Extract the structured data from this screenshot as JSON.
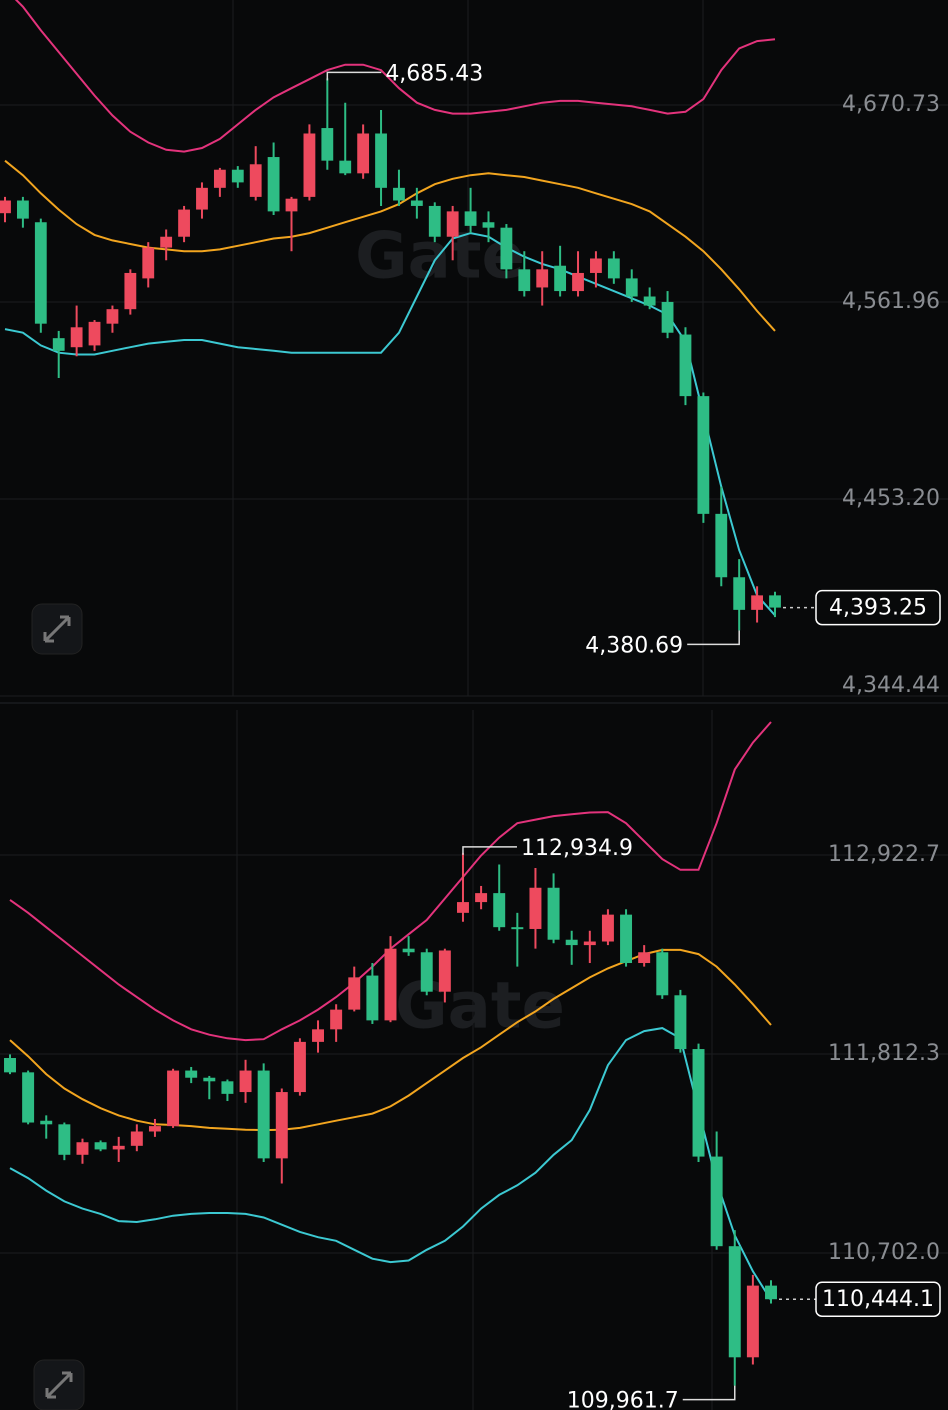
{
  "chart_data": [
    {
      "type": "candlestick",
      "up_color": "#ee4a5e",
      "down_color": "#2ebd85",
      "ylim": [
        4344.44,
        4728.7
      ],
      "yticks": [
        {
          "value": 4344.44,
          "label": "4,344.44"
        },
        {
          "value": 4453.2,
          "label": "4,453.20"
        },
        {
          "value": 4561.96,
          "label": "4,561.96"
        },
        {
          "value": 4670.73,
          "label": "4,670.73"
        }
      ],
      "grid": true,
      "watermark": "Gate",
      "high_label": "4,685.43",
      "low_label": "4,380.69",
      "last_label": "4,393.25",
      "open": [
        4611,
        4618,
        4606,
        4542,
        4537,
        4538,
        4550,
        4558,
        4575,
        4592,
        4598,
        4613,
        4625,
        4635,
        4620,
        4642,
        4612,
        4620,
        4658,
        4640,
        4633,
        4655,
        4625,
        4618,
        4615,
        4598,
        4612,
        4606,
        4603,
        4580,
        4570,
        4582,
        4568,
        4578,
        4586,
        4575,
        4565,
        4562,
        4544,
        4510,
        4445,
        4410,
        4392,
        4400
      ],
      "high": [
        4620,
        4620,
        4608,
        4546,
        4560,
        4552,
        4560,
        4580,
        4595,
        4602,
        4615,
        4628,
        4636,
        4637,
        4648,
        4650,
        4620,
        4660,
        4685.43,
        4672,
        4660,
        4668,
        4635,
        4625,
        4617,
        4615,
        4625,
        4612,
        4605,
        4590,
        4590,
        4593,
        4590,
        4590,
        4590,
        4580,
        4570,
        4568,
        4548,
        4512,
        4460,
        4420,
        4405,
        4402
      ],
      "low": [
        4606,
        4603,
        4545,
        4520,
        4532,
        4535,
        4545,
        4555,
        4570,
        4585,
        4595,
        4608,
        4620,
        4625,
        4618,
        4610,
        4590,
        4618,
        4635,
        4632,
        4630,
        4615,
        4615,
        4608,
        4595,
        4585,
        4600,
        4595,
        4575,
        4565,
        4560,
        4565,
        4565,
        4570,
        4572,
        4562,
        4558,
        4542,
        4505,
        4440,
        4405,
        4380.69,
        4385,
        4388
      ],
      "close": [
        4618,
        4608,
        4550,
        4535,
        4548,
        4551,
        4558,
        4578,
        4592,
        4598,
        4613,
        4625,
        4635,
        4628,
        4638,
        4612,
        4619,
        4655,
        4640,
        4633,
        4655,
        4625,
        4618,
        4615,
        4598,
        4612,
        4604,
        4603,
        4580,
        4568,
        4580,
        4568,
        4578,
        4586,
        4575,
        4565,
        4560,
        4545,
        4510,
        4445,
        4410,
        4392,
        4400,
        4393.25
      ],
      "bands": [
        {
          "color": "#e3337c",
          "values": [
            4735,
            4725,
            4712,
            4700,
            4688,
            4676,
            4665,
            4656,
            4650,
            4646,
            4645,
            4647,
            4652,
            4660,
            4668,
            4675,
            4680,
            4685,
            4690,
            4693,
            4693,
            4690,
            4680,
            4672,
            4668,
            4666,
            4666,
            4667,
            4668,
            4670,
            4672,
            4673,
            4673,
            4672,
            4671,
            4670,
            4668,
            4666,
            4667,
            4674,
            4690,
            4702,
            4706,
            4707
          ]
        },
        {
          "color": "#f2a51f",
          "values": [
            4640,
            4632,
            4622,
            4613,
            4605,
            4599,
            4596,
            4594,
            4592,
            4591,
            4590,
            4590,
            4591,
            4593,
            4595,
            4597,
            4598,
            4600,
            4603,
            4606,
            4609,
            4612,
            4616,
            4622,
            4627,
            4630,
            4632,
            4633,
            4632,
            4631,
            4629,
            4627,
            4625,
            4622,
            4619,
            4616,
            4612,
            4605,
            4598,
            4590,
            4580,
            4569,
            4557,
            4546
          ]
        },
        {
          "color": "#3cc9d2",
          "values": [
            4547,
            4545,
            4538,
            4534,
            4533,
            4533,
            4535,
            4537,
            4539,
            4540,
            4541,
            4541,
            4539,
            4537,
            4536,
            4535,
            4534,
            4534,
            4534,
            4534,
            4534,
            4534,
            4545,
            4565,
            4585,
            4597,
            4600,
            4598,
            4592,
            4587,
            4583,
            4580,
            4576,
            4572,
            4568,
            4564,
            4560,
            4555,
            4540,
            4500,
            4460,
            4425,
            4400,
            4389
          ]
        }
      ]
    },
    {
      "type": "candlestick",
      "up_color": "#ee4a5e",
      "down_color": "#2ebd85",
      "ylim": [
        109826,
        113731.8
      ],
      "yticks": [
        {
          "value": 110702.0,
          "label": "110,702.0"
        },
        {
          "value": 111812.3,
          "label": "111,812.3"
        },
        {
          "value": 112922.7,
          "label": "112,922.7"
        }
      ],
      "grid": true,
      "watermark": "Gate",
      "high_label": "112,934.9",
      "low_label": "109,961.7",
      "last_label": "110,444.1",
      "open": [
        111790,
        111710,
        111440,
        111420,
        111250,
        111320,
        111280,
        111300,
        111380,
        111410,
        111720,
        111680,
        111660,
        111600,
        111720,
        111230,
        111600,
        111880,
        111950,
        112060,
        112250,
        112000,
        112400,
        112380,
        112160,
        112600,
        112660,
        112710,
        112520,
        112510,
        112740,
        112450,
        112420,
        112440,
        112590,
        112320,
        112380,
        112140,
        111840,
        111240,
        110740,
        110120,
        110520
      ],
      "high": [
        111810,
        111720,
        111470,
        111430,
        111340,
        111330,
        111350,
        111420,
        111450,
        111730,
        111740,
        111690,
        111670,
        111780,
        111760,
        111620,
        111900,
        112000,
        112090,
        112300,
        112320,
        112470,
        112470,
        112400,
        112400,
        112934.9,
        112750,
        112870,
        112600,
        112850,
        112820,
        112500,
        112500,
        112620,
        112620,
        112420,
        112400,
        112170,
        111870,
        111380,
        110830,
        110580,
        110550
      ],
      "low": [
        111700,
        111420,
        111340,
        111220,
        111200,
        111270,
        111210,
        111270,
        111350,
        111400,
        111650,
        111560,
        111550,
        111540,
        111210,
        111090,
        111580,
        111820,
        111880,
        112050,
        111980,
        111990,
        112360,
        112140,
        112100,
        112550,
        112620,
        112500,
        112300,
        112400,
        112430,
        112310,
        112320,
        112420,
        112300,
        112300,
        112120,
        111820,
        111210,
        110720,
        109961.7,
        110080,
        110420
      ],
      "close": [
        111710,
        111430,
        111420,
        111250,
        111320,
        111280,
        111300,
        111380,
        111410,
        111720,
        111680,
        111660,
        111590,
        111720,
        111230,
        111600,
        111880,
        111950,
        112060,
        112240,
        112000,
        112400,
        112380,
        112160,
        112390,
        112660,
        112710,
        112520,
        112510,
        112740,
        112450,
        112420,
        112440,
        112590,
        112320,
        112380,
        112140,
        111840,
        111240,
        110740,
        110120,
        110520,
        110444.1
      ],
      "bands": [
        {
          "color": "#e3337c",
          "values": [
            112672,
            112600,
            112520,
            112440,
            112360,
            112280,
            112200,
            112130,
            112060,
            112000,
            111950,
            111920,
            111900,
            111890,
            111895,
            111950,
            112000,
            112060,
            112130,
            112210,
            112300,
            112400,
            112480,
            112560,
            112680,
            112800,
            112920,
            113020,
            113100,
            113120,
            113140,
            113150,
            113160,
            113162,
            113100,
            113000,
            112900,
            112840,
            112840,
            113100,
            113400,
            113550,
            113665
          ]
        },
        {
          "color": "#f2a51f",
          "values": [
            111890,
            111800,
            111700,
            111620,
            111560,
            111510,
            111470,
            111440,
            111420,
            111416,
            111410,
            111400,
            111395,
            111390,
            111388,
            111390,
            111400,
            111420,
            111440,
            111460,
            111480,
            111520,
            111580,
            111650,
            111720,
            111790,
            111850,
            111920,
            111990,
            112050,
            112120,
            112180,
            112240,
            112290,
            112330,
            112370,
            112393,
            112393,
            112370,
            112300,
            112200,
            112090,
            111974
          ]
        },
        {
          "color": "#3cc9d2",
          "values": [
            111176,
            111120,
            111050,
            110990,
            110950,
            110920,
            110880,
            110875,
            110890,
            110910,
            110920,
            110925,
            110925,
            110920,
            110900,
            110860,
            110820,
            110790,
            110770,
            110720,
            110670,
            110651,
            110660,
            110720,
            110770,
            110850,
            110950,
            111026,
            111080,
            111150,
            111250,
            111332,
            111500,
            111750,
            111890,
            111940,
            111957,
            111900,
            111500,
            111100,
            110800,
            110600,
            110440
          ]
        }
      ]
    }
  ]
}
